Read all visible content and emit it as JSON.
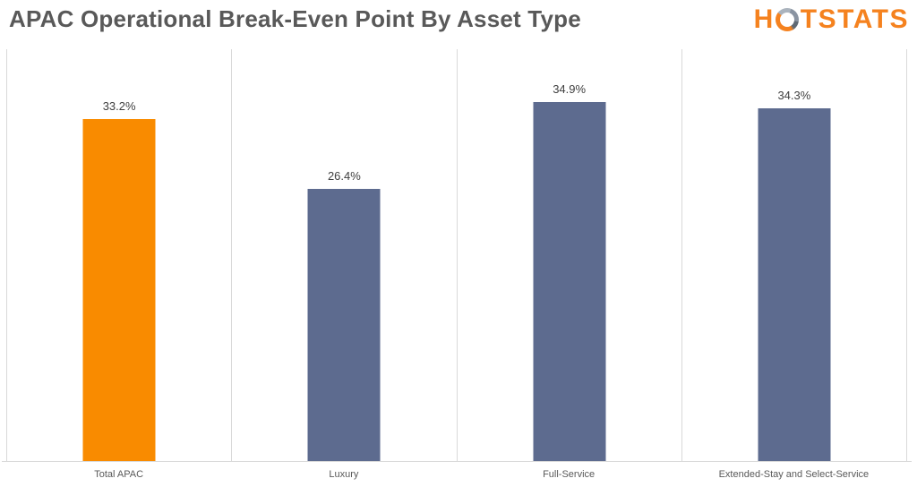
{
  "title": "APAC Operational Break-Even Point By Asset Type",
  "logo": {
    "prefix": "H",
    "suffix": "TSTATS",
    "o_icon": "hotstats-swirl-o-icon",
    "orange": "#F5821F",
    "gray": "#8C96A3"
  },
  "chart_data": {
    "type": "bar",
    "title": "APAC Operational Break-Even Point By Asset Type",
    "categories": [
      "Total APAC",
      "Luxury",
      "Full-Service",
      "Extended-Stay and Select-Service"
    ],
    "values": [
      33.2,
      26.4,
      34.9,
      34.3
    ],
    "data_labels": [
      "33.2%",
      "26.4%",
      "34.9%",
      "34.3%"
    ],
    "unit": "%",
    "ylim": [
      0,
      40
    ],
    "xlabel": "",
    "ylabel": "",
    "bar_colors": [
      "#F98B00",
      "#5D6B8F",
      "#5D6B8F",
      "#5D6B8F"
    ],
    "gridlines": "vertical-category-separators",
    "gridline_color": "#D9D9D9",
    "legend": "none",
    "background": "#FFFFFF",
    "label_color": "#404040",
    "axis_label_color": "#595959",
    "title_color": "#595959"
  }
}
